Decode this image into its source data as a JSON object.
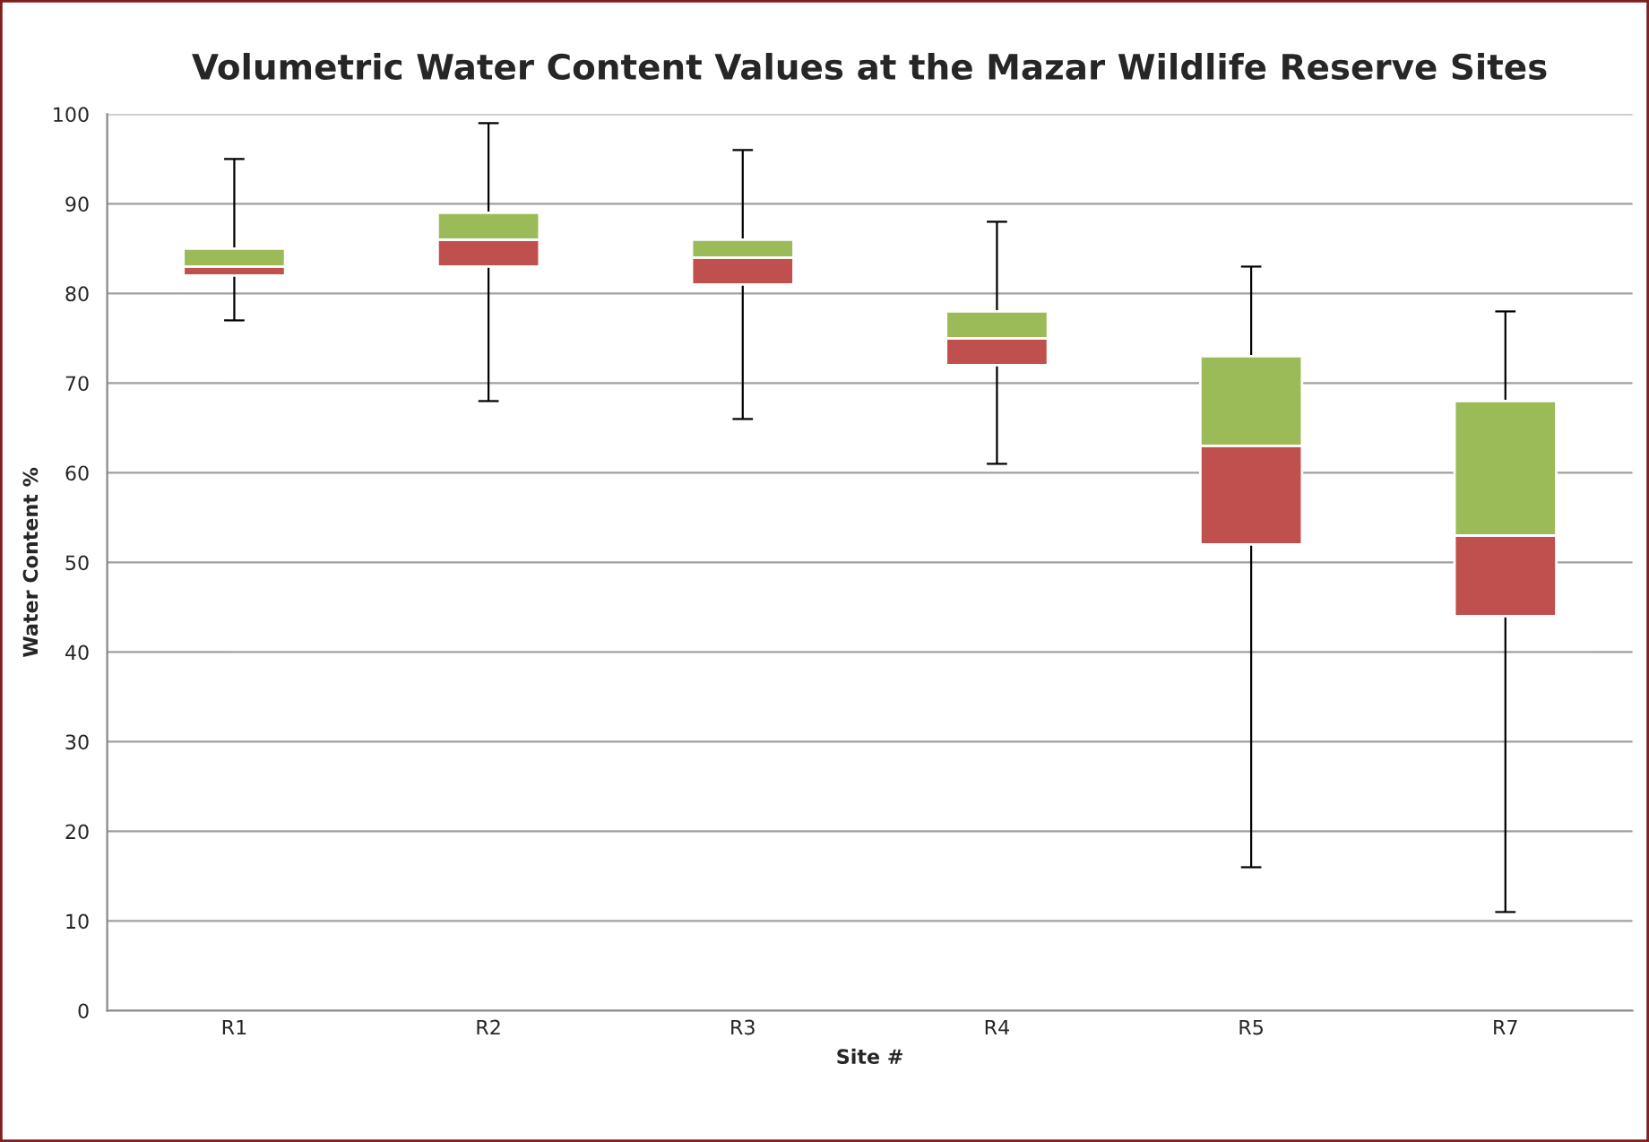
{
  "chart_data": {
    "type": "box",
    "title": "Volumetric Water Content Values at the Mazar Wildlife Reserve Sites",
    "xlabel": "Site #",
    "ylabel": "Water Content %",
    "categories": [
      "R1",
      "R2",
      "R3",
      "R4",
      "R5",
      "R7"
    ],
    "colors": [
      [
        "#c0504d",
        "#9bbb59"
      ],
      [
        "#c0504d",
        "#9bbb59"
      ],
      [
        "#c0504d",
        "#9bbb59"
      ],
      [
        "#c0504d",
        "#9bbb59"
      ],
      [
        "#c0504d",
        "#9bbb59"
      ],
      [
        "#c0504d",
        "#9bbb59"
      ]
    ],
    "boxes": [
      {
        "low": 77,
        "q1": 82,
        "median": 83,
        "q3": 85,
        "high": 95
      },
      {
        "low": 68,
        "q1": 83,
        "median": 86,
        "q3": 89,
        "high": 99
      },
      {
        "low": 66,
        "q1": 81,
        "median": 84,
        "q3": 86,
        "high": 96
      },
      {
        "low": 61,
        "q1": 72,
        "median": 75,
        "q3": 78,
        "high": 88
      },
      {
        "low": 16,
        "q1": 52,
        "median": 63,
        "q3": 73,
        "high": 83
      },
      {
        "low": 11,
        "q1": 44,
        "median": 53,
        "q3": 68,
        "high": 78
      }
    ],
    "ylim": [
      0,
      100
    ],
    "yticks": [
      0,
      10,
      20,
      30,
      40,
      50,
      60,
      70,
      80,
      90,
      100
    ],
    "grid": "y",
    "legend": false
  }
}
